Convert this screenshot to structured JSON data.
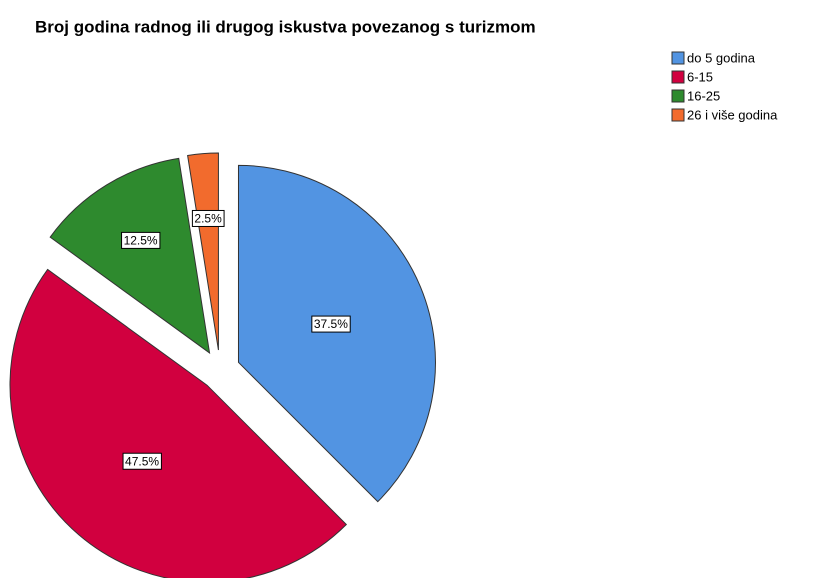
{
  "chart_data": {
    "type": "pie",
    "title": "Broj godina radnog ili drugog iskustva povezanog s turizmom",
    "categories": [
      "do 5 godina",
      "6-15",
      "16-25",
      "26 i više godina"
    ],
    "values": [
      37.5,
      47.5,
      12.5,
      2.5
    ],
    "value_labels": [
      "37.5%",
      "47.5%",
      "12.5%",
      "2.5%"
    ],
    "colors": [
      "#5294e2",
      "#d1003f",
      "#2e8a2e",
      "#f26b2d"
    ],
    "legend": "top-right"
  }
}
